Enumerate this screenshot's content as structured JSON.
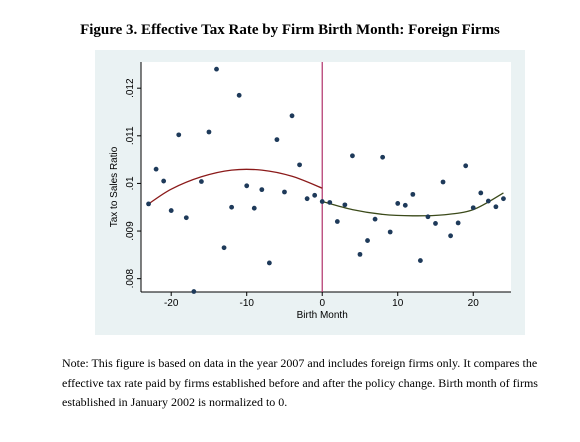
{
  "figure_title": "Figure 3. Effective Tax Rate by Firm Birth Month: Foreign Firms",
  "note": "Note: This figure is based on data in the year 2007 and includes foreign firms only. It compares the effective tax rate paid by firms established before and after the policy change. Birth month of firms established in January 2002 is normalized to 0.",
  "colors": {
    "panel_bg": "#eaf2f3",
    "point": "#1e3a5a",
    "fit_left": "#8b1a1a",
    "fit_right": "#3b4a1a",
    "cutoff": "#b0306a"
  },
  "chart_data": {
    "type": "scatter",
    "title": "",
    "xlabel": "Birth Month",
    "ylabel": "Tax to Sales Ratio",
    "xlim": [
      -24,
      25
    ],
    "ylim": [
      0.00772,
      0.01255
    ],
    "xticks": [
      -20,
      -10,
      0,
      10,
      20
    ],
    "yticks": [
      0.008,
      0.009,
      0.01,
      0.011,
      0.012
    ],
    "ytick_labels": [
      ".008",
      ".009",
      ".01",
      ".011",
      ".012"
    ],
    "cutoff_x": 0,
    "points": [
      {
        "x": -23,
        "y": 0.00957
      },
      {
        "x": -22,
        "y": 0.0103
      },
      {
        "x": -21,
        "y": 0.01005
      },
      {
        "x": -20,
        "y": 0.00943
      },
      {
        "x": -19,
        "y": 0.01102
      },
      {
        "x": -18,
        "y": 0.00928
      },
      {
        "x": -17,
        "y": 0.00773
      },
      {
        "x": -16,
        "y": 0.01004
      },
      {
        "x": -15,
        "y": 0.01108
      },
      {
        "x": -14,
        "y": 0.0124
      },
      {
        "x": -13,
        "y": 0.00865
      },
      {
        "x": -12,
        "y": 0.0095
      },
      {
        "x": -11,
        "y": 0.01185
      },
      {
        "x": -10,
        "y": 0.00995
      },
      {
        "x": -9,
        "y": 0.00948
      },
      {
        "x": -8,
        "y": 0.00987
      },
      {
        "x": -7,
        "y": 0.00833
      },
      {
        "x": -6,
        "y": 0.01092
      },
      {
        "x": -5,
        "y": 0.00982
      },
      {
        "x": -4,
        "y": 0.01142
      },
      {
        "x": -3,
        "y": 0.01039
      },
      {
        "x": -2,
        "y": 0.00968
      },
      {
        "x": -1,
        "y": 0.00975
      },
      {
        "x": 0,
        "y": 0.00962
      },
      {
        "x": 1,
        "y": 0.0096
      },
      {
        "x": 2,
        "y": 0.0092
      },
      {
        "x": 3,
        "y": 0.00955
      },
      {
        "x": 4,
        "y": 0.01058
      },
      {
        "x": 5,
        "y": 0.00851
      },
      {
        "x": 6,
        "y": 0.0088
      },
      {
        "x": 7,
        "y": 0.00925
      },
      {
        "x": 8,
        "y": 0.01055
      },
      {
        "x": 9,
        "y": 0.00898
      },
      {
        "x": 10,
        "y": 0.00958
      },
      {
        "x": 11,
        "y": 0.00954
      },
      {
        "x": 12,
        "y": 0.00977
      },
      {
        "x": 13,
        "y": 0.00838
      },
      {
        "x": 14,
        "y": 0.0093
      },
      {
        "x": 15,
        "y": 0.00916
      },
      {
        "x": 16,
        "y": 0.01003
      },
      {
        "x": 17,
        "y": 0.0089
      },
      {
        "x": 18,
        "y": 0.00917
      },
      {
        "x": 19,
        "y": 0.01037
      },
      {
        "x": 20,
        "y": 0.00949
      },
      {
        "x": 21,
        "y": 0.0098
      },
      {
        "x": 22,
        "y": 0.00963
      },
      {
        "x": 23,
        "y": 0.00951
      },
      {
        "x": 24,
        "y": 0.00968
      }
    ],
    "fit_left": [
      {
        "x": -23,
        "y": 0.00957
      },
      {
        "x": -20,
        "y": 0.00988
      },
      {
        "x": -16,
        "y": 0.01014
      },
      {
        "x": -12,
        "y": 0.01028
      },
      {
        "x": -8,
        "y": 0.01028
      },
      {
        "x": -4,
        "y": 0.01015
      },
      {
        "x": 0,
        "y": 0.0099
      }
    ],
    "fit_right": [
      {
        "x": 0,
        "y": 0.00962
      },
      {
        "x": 4,
        "y": 0.00945
      },
      {
        "x": 8,
        "y": 0.00935
      },
      {
        "x": 12,
        "y": 0.00932
      },
      {
        "x": 16,
        "y": 0.00934
      },
      {
        "x": 20,
        "y": 0.00945
      },
      {
        "x": 24,
        "y": 0.0098
      }
    ]
  }
}
